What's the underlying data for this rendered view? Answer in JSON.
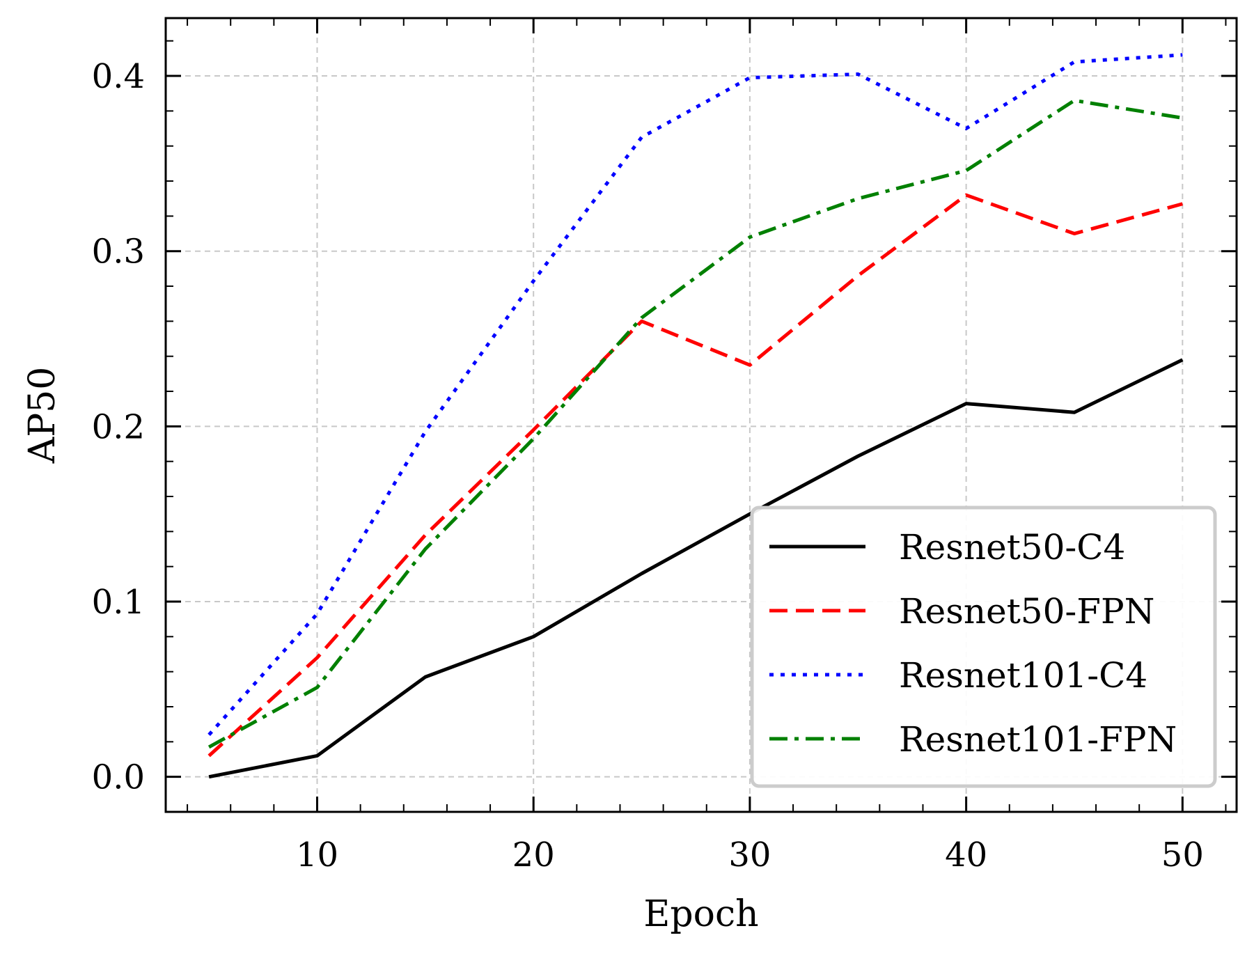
{
  "chart_data": {
    "type": "line",
    "title": "",
    "xlabel": "Epoch",
    "ylabel": "AP50",
    "xlim": [
      3,
      52.5
    ],
    "ylim": [
      -0.02,
      0.433
    ],
    "x_ticks": [
      10,
      20,
      30,
      40,
      50
    ],
    "x_tick_labels": [
      "10",
      "20",
      "30",
      "40",
      "50"
    ],
    "y_ticks": [
      0.0,
      0.1,
      0.2,
      0.3,
      0.4
    ],
    "y_tick_labels": [
      "0.0",
      "0.1",
      "0.2",
      "0.3",
      "0.4"
    ],
    "grid": true,
    "legend_position": "lower-right",
    "x": [
      5,
      10,
      15,
      20,
      25,
      30,
      35,
      40,
      45,
      50
    ],
    "series": [
      {
        "name": "Resnet50-C4",
        "color": "#000000",
        "style": "solid",
        "values": [
          0.0,
          0.012,
          0.057,
          0.08,
          0.116,
          0.15,
          0.183,
          0.213,
          0.208,
          0.238
        ]
      },
      {
        "name": "Resnet50-FPN",
        "color": "#ff0000",
        "style": "dashed",
        "values": [
          0.012,
          0.068,
          0.138,
          0.198,
          0.26,
          0.235,
          0.286,
          0.332,
          0.31,
          0.327
        ]
      },
      {
        "name": "Resnet101-C4",
        "color": "#0000ff",
        "style": "dotted",
        "values": [
          0.024,
          0.093,
          0.197,
          0.283,
          0.365,
          0.399,
          0.401,
          0.37,
          0.408,
          0.412
        ]
      },
      {
        "name": "Resnet101-FPN",
        "color": "#008000",
        "style": "dashdot",
        "values": [
          0.017,
          0.051,
          0.13,
          0.193,
          0.262,
          0.308,
          0.33,
          0.346,
          0.386,
          0.376
        ]
      }
    ]
  }
}
